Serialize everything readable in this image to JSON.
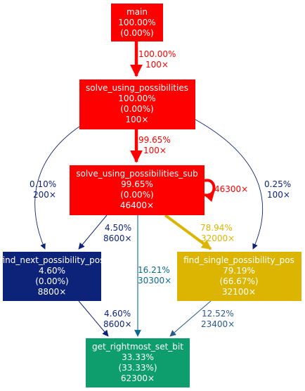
{
  "colors": {
    "red": "#ff0000",
    "navy": "#0d237a",
    "gold": "#dcb502",
    "teal": "#0e9e6e",
    "white": "#ffffff",
    "edge_dark": "#0d237a",
    "edge_teal": "#0b6a8f",
    "edge_slate": "#2a5a8a"
  },
  "nodes": {
    "main": {
      "name": "main",
      "total": "100.00%",
      "self": "(0.00%)"
    },
    "solve": {
      "name": "solve_using_possibilities",
      "total": "100.00%",
      "self": "(0.00%)",
      "calls": "100×"
    },
    "solve_sub": {
      "name": "solve_using_possibilities_sub",
      "total": "99.65%",
      "self": "(0.00%)",
      "calls": "46400×"
    },
    "find_next": {
      "name": "find_next_possibility_pos",
      "total": "4.60%",
      "self": "(0.00%)",
      "calls": "8800×"
    },
    "find_single": {
      "name": "find_single_possibility_pos",
      "total": "79.19%",
      "self": "(66.67%)",
      "calls": "32100×"
    },
    "rightmost": {
      "name": "get_rightmost_set_bit",
      "total": "33.33%",
      "self": "(33.33%)",
      "calls": "62300×"
    }
  },
  "edges": {
    "main_solve": {
      "pct": "100.00%",
      "calls": "100×"
    },
    "solve_sub": {
      "pct": "99.65%",
      "calls": "100×"
    },
    "solve_next": {
      "pct": "0.10%",
      "calls": "200×"
    },
    "solve_single": {
      "pct": "0.25%",
      "calls": "100×"
    },
    "sub_self": {
      "calls": "46300×"
    },
    "sub_next": {
      "pct": "4.50%",
      "calls": "8600×"
    },
    "sub_single": {
      "pct": "78.94%",
      "calls": "32000×"
    },
    "sub_rightmost": {
      "pct": "16.21%",
      "calls": "30300×"
    },
    "next_rightmost": {
      "pct": "4.60%",
      "calls": "8600×"
    },
    "single_rightmost": {
      "pct": "12.52%",
      "calls": "23400×"
    }
  }
}
